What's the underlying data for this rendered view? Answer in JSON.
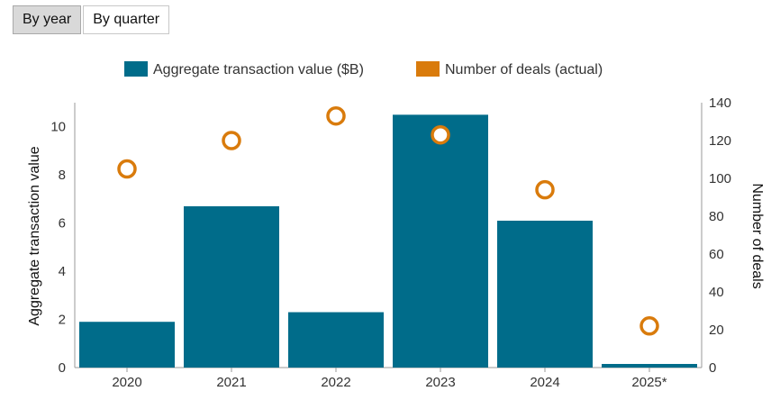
{
  "toggle": {
    "by_year": "By year",
    "by_quarter": "By quarter"
  },
  "colors": {
    "bar": "#006c8a",
    "deal_marker": "#d97b0c",
    "axis": "#999999"
  },
  "chart_data": {
    "type": "bar",
    "categories": [
      "2020",
      "2021",
      "2022",
      "2023",
      "2024",
      "2025*"
    ],
    "series": [
      {
        "name": "Aggregate transaction value ($B)",
        "type": "bar",
        "axis": "left",
        "values": [
          1.9,
          6.7,
          2.3,
          10.5,
          6.1,
          0.15
        ]
      },
      {
        "name": "Number of deals (actual)",
        "type": "scatter",
        "axis": "right",
        "values": [
          105,
          120,
          133,
          123,
          94,
          22
        ]
      }
    ],
    "ylabel": "Aggregate transaction value",
    "y2label": "Number of deals",
    "ylim": [
      0,
      11
    ],
    "y2lim": [
      0,
      140
    ],
    "yticks": [
      "0",
      "2",
      "4",
      "6",
      "8",
      "10"
    ],
    "y2ticks": [
      "0",
      "20",
      "40",
      "60",
      "80",
      "100",
      "120",
      "140"
    ],
    "legend": [
      "Aggregate transaction value ($B)",
      "Number of deals (actual)"
    ],
    "legend_position": "top-center"
  }
}
